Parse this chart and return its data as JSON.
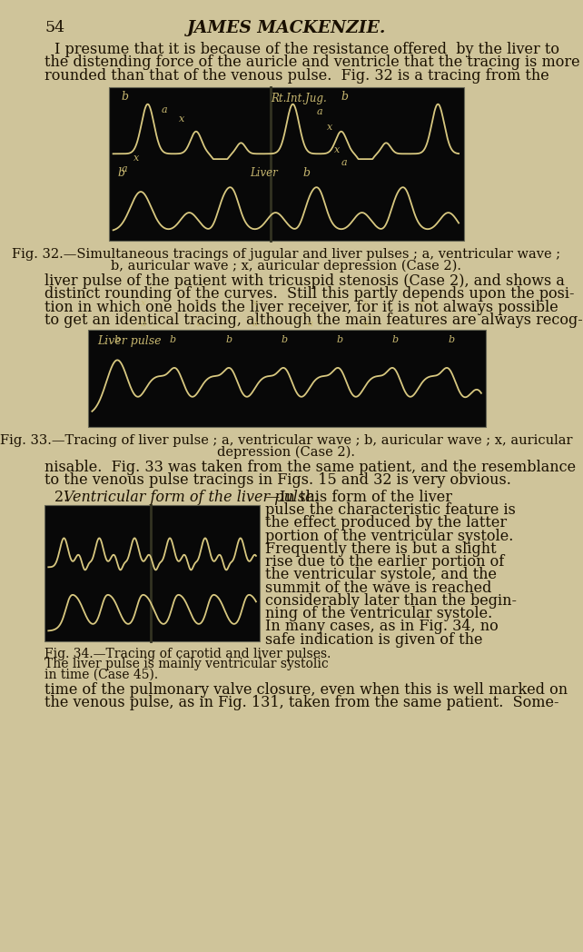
{
  "page_bg": "#cfc49a",
  "page_number": "54",
  "page_header": "JAMES MACKENZIE.",
  "text_color": "#1a1000",
  "fig_bg": "#080808",
  "fig_line_color": "#d8c880",
  "label_color": "#c8b870",
  "para1_line1": "I presume that it is because of the resistance offered  by the liver to",
  "para1_line2": "the distending force of the auricle and ventricle that the tracing is more",
  "para1_line3": "rounded than that of the venous pulse.  Fig. 32 is a tracing from the",
  "fig32_caption_line1": "Fig. 32.—Simultaneous tracings of jugular and liver pulses ; a, ventricular wave ;",
  "fig32_caption_line2": "b, auricular wave ; x, auricular depression (Case 2).",
  "para2_line1": "liver pulse of the patient with tricuspid stenosis (Case 2), and shows a",
  "para2_line2": "distinct rounding of the curves.  Still this partly depends upon the posi-",
  "para2_line3": "tion in which one holds the liver receiver, for it is not always possible",
  "para2_line4": "to get an identical tracing, although the main features are always recog-",
  "fig33_caption_line1": "Fig. 33.—Tracing of liver pulse ; a, ventricular wave ; b, auricular wave ; x, auricular",
  "fig33_caption_line2": "depression (Case 2).",
  "para3_line1": "nisable.  Fig. 33 was taken from the same patient, and the resemblance",
  "para3_line2": "to the venous pulse tracings in Figs. 15 and 32 is very obvious.",
  "para4_prefix": "2. ",
  "para4_italic": "Ventricular form of the liver pulse.",
  "para4_cont": "—In this form of the liver",
  "para4_right_lines": [
    "pulse the characteristic feature is",
    "the effect produced by the latter",
    "portion of the ventricular systole.",
    "Frequently there is but a slight",
    "rise due to the earlier portion of",
    "the ventricular systole, and the",
    "summit of the wave is reached",
    "considerably later than the begin-",
    "ning of the ventricular systole."
  ],
  "fig34_caption_line1": "Fig. 34.—Tracing of carotid and liver pulses.",
  "fig34_caption_line2": "The liver pulse is mainly ventricular systolic",
  "fig34_caption_line3": "in time (Case 45).",
  "para5_right_lines": [
    "In many cases, as in Fig. 34, no",
    "safe indication is given of the"
  ],
  "para6_line1": "time of the pulmonary valve closure, even when this is well marked on",
  "para6_line2": "the venous pulse, as in Fig. 131, taken from the same patient.  Some-"
}
